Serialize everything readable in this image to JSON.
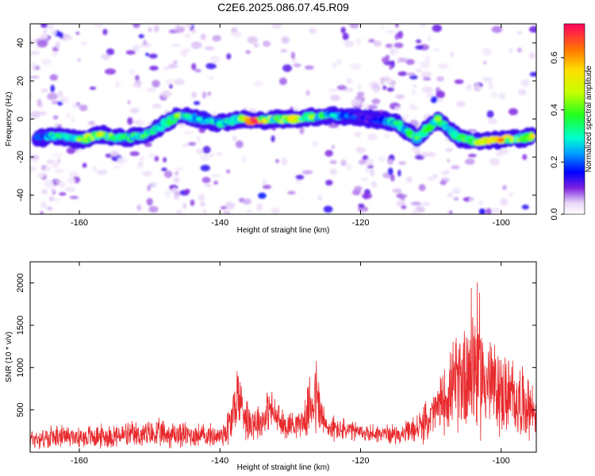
{
  "title": "C2E6.2025.086.07.45.R09",
  "chart_data": [
    {
      "type": "heatmap",
      "xlabel": "Height of straight line (km)",
      "ylabel": "Frequency (Hz)",
      "xlim": [
        -167,
        -95
      ],
      "ylim": [
        -50,
        50
      ],
      "xticks": [
        -160,
        -140,
        -120,
        -100
      ],
      "yticks": [
        -40,
        -20,
        0,
        20,
        40
      ],
      "colorbar": {
        "label": "Normalized spectral amplitude",
        "range": [
          0,
          0.73
        ],
        "ticks": [
          0.0,
          0.2,
          0.4,
          0.6
        ]
      },
      "ridge": [
        {
          "x": -166,
          "y": -10,
          "a": 0.2
        },
        {
          "x": -163,
          "y": -9,
          "a": 0.35
        },
        {
          "x": -160,
          "y": -11,
          "a": 0.45
        },
        {
          "x": -157,
          "y": -8,
          "a": 0.5
        },
        {
          "x": -154,
          "y": -10,
          "a": 0.35
        },
        {
          "x": -151,
          "y": -9,
          "a": 0.4
        },
        {
          "x": -148,
          "y": -3,
          "a": 0.3
        },
        {
          "x": -146,
          "y": 2,
          "a": 0.45
        },
        {
          "x": -143,
          "y": 0,
          "a": 0.3
        },
        {
          "x": -140,
          "y": -2,
          "a": 0.3
        },
        {
          "x": -137,
          "y": 0,
          "a": 0.45
        },
        {
          "x": -135,
          "y": -1,
          "a": 0.73
        },
        {
          "x": -132,
          "y": 0,
          "a": 0.4
        },
        {
          "x": -130,
          "y": 0,
          "a": 0.55
        },
        {
          "x": -127,
          "y": 1,
          "a": 0.45
        },
        {
          "x": -124,
          "y": 2,
          "a": 0.3
        },
        {
          "x": -121,
          "y": 1,
          "a": 0.2
        },
        {
          "x": -118,
          "y": 0,
          "a": 0.15
        },
        {
          "x": -115,
          "y": -2,
          "a": 0.35
        },
        {
          "x": -112,
          "y": -10,
          "a": 0.4
        },
        {
          "x": -109,
          "y": 0,
          "a": 0.45
        },
        {
          "x": -106,
          "y": -10,
          "a": 0.35
        },
        {
          "x": -103,
          "y": -12,
          "a": 0.5
        },
        {
          "x": -100,
          "y": -11,
          "a": 0.65
        },
        {
          "x": -97,
          "y": -10,
          "a": 0.4
        },
        {
          "x": -95.5,
          "y": -9,
          "a": 0.55
        }
      ],
      "noise_bands": [
        {
          "x": -166,
          "a": 0.15
        },
        {
          "x": -163,
          "a": 0.1
        },
        {
          "x": -144,
          "a": 0.12
        },
        {
          "x": -150,
          "a": 0.08
        },
        {
          "x": -121,
          "a": 0.18
        },
        {
          "x": -117,
          "a": 0.15
        },
        {
          "x": -113,
          "a": 0.08
        }
      ]
    },
    {
      "type": "line",
      "xlabel": "Height of straight line (km)",
      "ylabel": "SNR (10 * v/v)",
      "xlim": [
        -167,
        -95
      ],
      "ylim": [
        0,
        2250
      ],
      "xticks": [
        -160,
        -140,
        -120,
        -100
      ],
      "yticks": [
        500,
        1000,
        1500,
        2000
      ],
      "color": "#e8292c",
      "envelope": [
        {
          "x": -167,
          "base": 150,
          "amp": 150
        },
        {
          "x": -155,
          "base": 180,
          "amp": 170
        },
        {
          "x": -148,
          "base": 200,
          "amp": 200
        },
        {
          "x": -140,
          "base": 180,
          "amp": 150
        },
        {
          "x": -138.5,
          "base": 300,
          "amp": 350
        },
        {
          "x": -137.5,
          "base": 650,
          "amp": 450
        },
        {
          "x": -136,
          "base": 350,
          "amp": 300
        },
        {
          "x": -134,
          "base": 350,
          "amp": 250
        },
        {
          "x": -133,
          "base": 500,
          "amp": 300
        },
        {
          "x": -131,
          "base": 300,
          "amp": 200
        },
        {
          "x": -128,
          "base": 350,
          "amp": 200
        },
        {
          "x": -126.5,
          "base": 650,
          "amp": 650
        },
        {
          "x": -125,
          "base": 280,
          "amp": 200
        },
        {
          "x": -120,
          "base": 220,
          "amp": 130
        },
        {
          "x": -114,
          "base": 200,
          "amp": 130
        },
        {
          "x": -111,
          "base": 300,
          "amp": 250
        },
        {
          "x": -108.5,
          "base": 550,
          "amp": 400
        },
        {
          "x": -106,
          "base": 800,
          "amp": 700
        },
        {
          "x": -104,
          "base": 1000,
          "amp": 1200
        },
        {
          "x": -102,
          "base": 800,
          "amp": 700
        },
        {
          "x": -100,
          "base": 650,
          "amp": 600
        },
        {
          "x": -97,
          "base": 550,
          "amp": 500
        },
        {
          "x": -95,
          "base": 450,
          "amp": 350
        }
      ]
    }
  ]
}
